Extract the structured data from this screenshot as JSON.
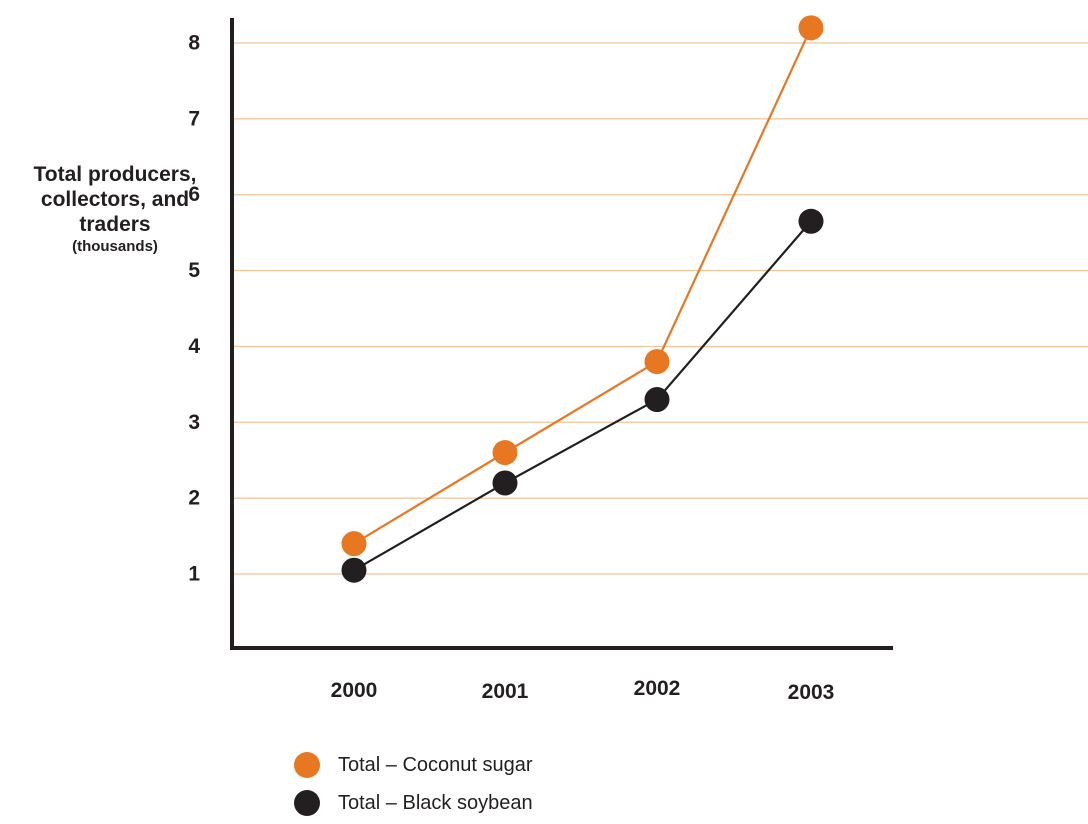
{
  "chart_data": {
    "type": "line",
    "xlabel": "",
    "ylabel": "Total producers, collectors, and traders",
    "ylabel_unit": "(thousands)",
    "categories": [
      "2000",
      "2001",
      "2002",
      "2003"
    ],
    "yticks": [
      1,
      2,
      3,
      4,
      5,
      6,
      7,
      8
    ],
    "ylim": [
      0,
      8.3
    ],
    "grid": true,
    "legend_position": "bottom",
    "series": [
      {
        "name": "Total – Coconut sugar",
        "color": "#e87722",
        "values": [
          1.4,
          2.6,
          3.8,
          8.2
        ]
      },
      {
        "name": "Total – Black soybean",
        "color": "#231f20",
        "values": [
          1.05,
          2.2,
          3.3,
          5.65
        ]
      }
    ],
    "gridline_color": "#f3c596",
    "axis_color": "#231f20"
  }
}
